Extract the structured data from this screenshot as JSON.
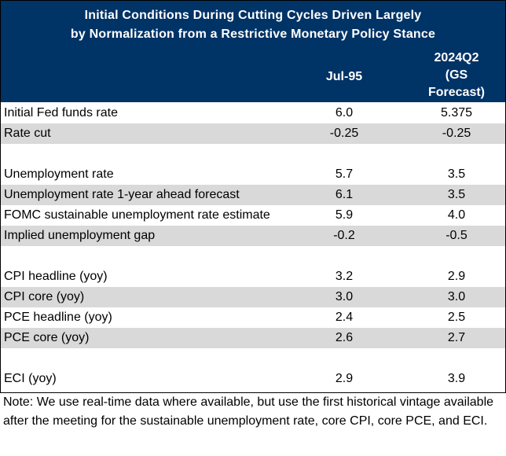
{
  "title": {
    "line1": "Initial Conditions During Cutting Cycles Driven Largely",
    "line2": "by Normalization from a Restrictive Monetary Policy Stance"
  },
  "columns": {
    "col1": "Jul-95",
    "col2_line1": "2024Q2",
    "col2_line2": "(GS",
    "col2_line3": "Forecast)"
  },
  "rows": [
    {
      "label": "Initial Fed funds rate",
      "v1": "6.0",
      "v2": "5.375"
    },
    {
      "label": "Rate cut",
      "v1": "-0.25",
      "v2": "-0.25"
    },
    {
      "label": "Unemployment rate",
      "v1": "5.7",
      "v2": "3.5"
    },
    {
      "label": "Unemployment rate 1-year ahead forecast",
      "v1": "6.1",
      "v2": "3.5"
    },
    {
      "label": "FOMC sustainable unemployment rate estimate",
      "v1": "5.9",
      "v2": "4.0"
    },
    {
      "label": "Implied unemployment gap",
      "v1": "-0.2",
      "v2": "-0.5"
    },
    {
      "label": "CPI headline (yoy)",
      "v1": "3.2",
      "v2": "2.9"
    },
    {
      "label": "CPI core (yoy)",
      "v1": "3.0",
      "v2": "3.0"
    },
    {
      "label": "PCE headline (yoy)",
      "v1": "2.4",
      "v2": "2.5"
    },
    {
      "label": "PCE core (yoy)",
      "v1": "2.6",
      "v2": "2.7"
    },
    {
      "label": "ECI (yoy)",
      "v1": "2.9",
      "v2": "3.9"
    }
  ],
  "note": "Note: We use real-time data where available, but use the first historical vintage available after the meeting for the sustainable unemployment rate, core CPI, core PCE, and ECI."
}
